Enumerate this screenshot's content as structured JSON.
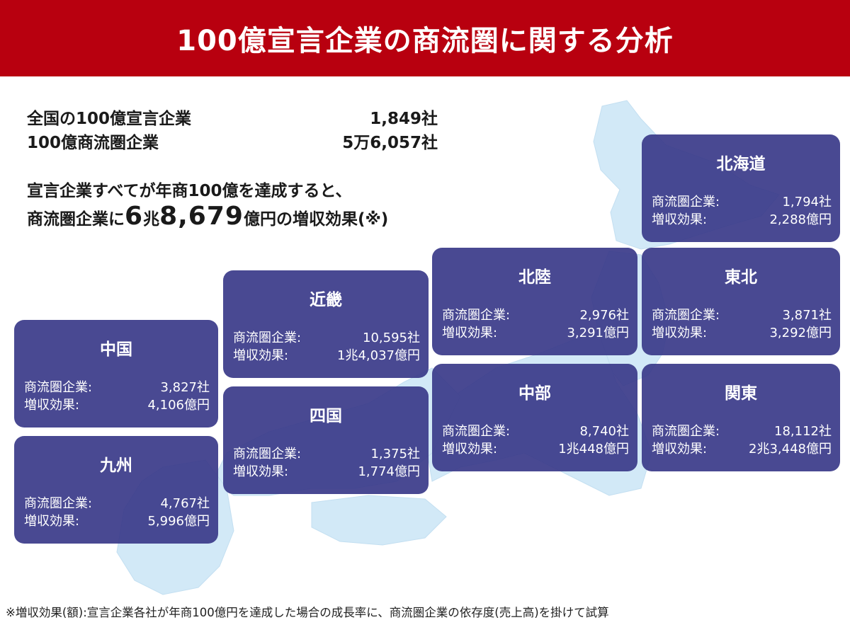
{
  "header": {
    "title": "100億宣言企業の商流圏に関する分析"
  },
  "summary": {
    "declared_label": "全国の100億宣言企業",
    "declared_value": "1,849社",
    "sphere_label": "100億商流圏企業",
    "sphere_value": "5万6,057社"
  },
  "headline": {
    "line1": "宣言企業すべてが年商100億を達成すると、",
    "line2_prefix": "商流圏企業に",
    "amount_cho": "6",
    "cho": "兆",
    "amount_oku": "8,679",
    "line2_suffix": "億円の増収効果(※)"
  },
  "row_labels": {
    "companies": "商流圏企業:",
    "effect": "増収効果:"
  },
  "regions": {
    "hokkaido": {
      "name": "北海道",
      "companies": "1,794社",
      "effect": "2,288億円"
    },
    "tohoku": {
      "name": "東北",
      "companies": "3,871社",
      "effect": "3,292億円"
    },
    "kanto": {
      "name": "関東",
      "companies": "18,112社",
      "effect": "2兆3,448億円"
    },
    "hokuriku": {
      "name": "北陸",
      "companies": "2,976社",
      "effect": "3,291億円"
    },
    "chubu": {
      "name": "中部",
      "companies": "8,740社",
      "effect": "1兆448億円"
    },
    "kinki": {
      "name": "近畿",
      "companies": "10,595社",
      "effect": "1兆4,037億円"
    },
    "shikoku": {
      "name": "四国",
      "companies": "1,375社",
      "effect": "1,774億円"
    },
    "chugoku": {
      "name": "中国",
      "companies": "3,827社",
      "effect": "4,106億円"
    },
    "kyushu": {
      "name": "九州",
      "companies": "4,767社",
      "effect": "5,996億円"
    }
  },
  "footnote": "※増収効果(額):宣言企業各社が年商100億円を達成した場合の成長率に、商流圏企業の依存度(売上高)を掛けて試算",
  "colors": {
    "header": "#b8000f",
    "card": "#3a3a89",
    "map_land": "#d2e9f7"
  }
}
